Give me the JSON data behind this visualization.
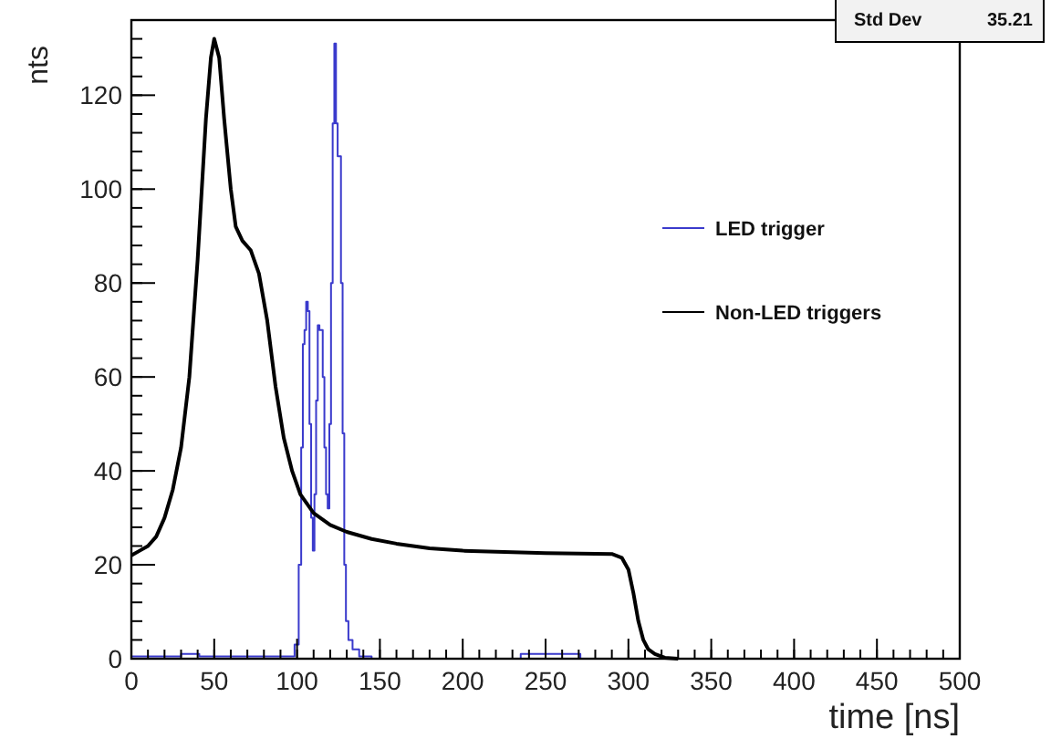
{
  "chart_data": {
    "type": "line",
    "xlabel": "time [ns]",
    "ylabel": "nts",
    "annotations": [
      "Std Dev 35.21"
    ],
    "xlim": [
      0,
      500
    ],
    "xticks": [
      0,
      50,
      100,
      150,
      200,
      250,
      300,
      350,
      400,
      450,
      500
    ],
    "ylim": [
      0,
      136
    ],
    "yticks": [
      0,
      20,
      40,
      60,
      80,
      100,
      120
    ],
    "legend": "right",
    "grid": false,
    "series": [
      {
        "name": "LED trigger",
        "type": "step",
        "color": "#3a3acc",
        "x": [
          0,
          20,
          40,
          42,
          60,
          90,
          97,
          100,
          102,
          103,
          104,
          105,
          106,
          107,
          108,
          109,
          110,
          111,
          112,
          113,
          114,
          115,
          116,
          117,
          118,
          119,
          120,
          121,
          122,
          123,
          124,
          125,
          126,
          127,
          128,
          129,
          130,
          132,
          135,
          140,
          150,
          200,
          270,
          272
        ],
        "values": [
          0.5,
          0.5,
          1,
          0.5,
          0.5,
          0.5,
          0.5,
          3,
          20,
          45,
          67,
          70,
          76,
          74,
          50,
          30,
          23,
          35,
          55,
          71,
          70,
          70,
          60,
          45,
          35,
          32,
          50,
          80,
          114,
          131,
          114,
          107,
          107,
          80,
          48,
          20,
          8,
          4,
          2,
          0.5,
          0,
          0,
          1,
          0
        ]
      },
      {
        "name": "Non-LED triggers",
        "color": "#000000",
        "x": [
          0,
          5,
          10,
          15,
          20,
          25,
          30,
          35,
          40,
          45,
          48,
          50,
          53,
          56,
          60,
          63,
          67,
          72,
          77,
          82,
          87,
          92,
          97,
          102,
          110,
          120,
          130,
          145,
          160,
          180,
          200,
          250,
          290,
          296,
          300,
          303,
          306,
          309,
          312,
          316,
          322,
          330
        ],
        "values": [
          22,
          23,
          24,
          26,
          30,
          36,
          45,
          60,
          85,
          115,
          128,
          132,
          128,
          115,
          100,
          92,
          89,
          87,
          82,
          72,
          58,
          47,
          40,
          35,
          31,
          28.5,
          27,
          25.5,
          24.5,
          23.5,
          23,
          22.5,
          22.3,
          21.5,
          19,
          14,
          8,
          4,
          2,
          1,
          0.2,
          0
        ]
      }
    ]
  }
}
